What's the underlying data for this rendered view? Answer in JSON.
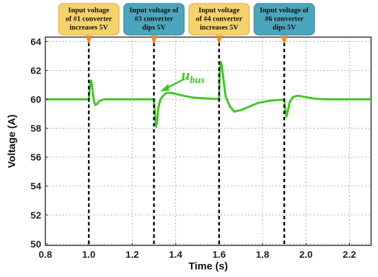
{
  "chart_data": {
    "type": "line",
    "xlabel": "Time (s)",
    "ylabel": "Voltage (A)",
    "xlim": [
      0.8,
      2.3
    ],
    "ylim": [
      49.9,
      64.3
    ],
    "xticks": [
      "0.8",
      "1.0",
      "1.2",
      "1.4",
      "1.6",
      "1.8",
      "2.0",
      "2.2"
    ],
    "xtick_values": [
      0.8,
      1.0,
      1.2,
      1.4,
      1.6,
      1.8,
      2.0,
      2.2
    ],
    "yticks": [
      "50",
      "52",
      "54",
      "56",
      "58",
      "60",
      "62",
      "64"
    ],
    "ytick_values": [
      50,
      52,
      54,
      56,
      58,
      60,
      62,
      64
    ],
    "grid": true,
    "series": [
      {
        "label_main": "u",
        "label_sub": "bus",
        "color": "#3cc81e",
        "points": [
          [
            0.8,
            60.0
          ],
          [
            0.99,
            60.0
          ],
          [
            1.0,
            60.0
          ],
          [
            1.005,
            60.8
          ],
          [
            1.01,
            61.3
          ],
          [
            1.015,
            61.0
          ],
          [
            1.02,
            60.3
          ],
          [
            1.025,
            59.8
          ],
          [
            1.03,
            59.6
          ],
          [
            1.04,
            59.7
          ],
          [
            1.05,
            59.9
          ],
          [
            1.07,
            60.0
          ],
          [
            1.3,
            60.0
          ],
          [
            1.302,
            59.5
          ],
          [
            1.31,
            58.1
          ],
          [
            1.315,
            58.6
          ],
          [
            1.32,
            59.4
          ],
          [
            1.33,
            60.0
          ],
          [
            1.345,
            60.3
          ],
          [
            1.36,
            60.45
          ],
          [
            1.38,
            60.45
          ],
          [
            1.42,
            60.3
          ],
          [
            1.48,
            60.12
          ],
          [
            1.55,
            60.05
          ],
          [
            1.6,
            60.02
          ],
          [
            1.602,
            61.5
          ],
          [
            1.607,
            62.6
          ],
          [
            1.612,
            62.4
          ],
          [
            1.62,
            61.4
          ],
          [
            1.63,
            60.2
          ],
          [
            1.65,
            59.5
          ],
          [
            1.67,
            59.15
          ],
          [
            1.7,
            59.25
          ],
          [
            1.74,
            59.5
          ],
          [
            1.78,
            59.75
          ],
          [
            1.84,
            59.92
          ],
          [
            1.9,
            59.98
          ],
          [
            1.902,
            59.6
          ],
          [
            1.91,
            58.8
          ],
          [
            1.915,
            59.1
          ],
          [
            1.925,
            59.8
          ],
          [
            1.94,
            60.15
          ],
          [
            1.96,
            60.25
          ],
          [
            1.99,
            60.18
          ],
          [
            2.04,
            60.04
          ],
          [
            2.1,
            60.0
          ],
          [
            2.3,
            60.0
          ]
        ]
      }
    ],
    "events": [
      {
        "x": 1.0,
        "text": [
          "Input voltage",
          "of #1 converter",
          "increases 5V"
        ],
        "fill": "#f7d26a",
        "stroke": "#d4a93a"
      },
      {
        "x": 1.3,
        "text": [
          "Input voltage of",
          "#3 converter",
          "dips 5V"
        ],
        "fill": "#4aa6bd",
        "stroke": "#2f7f94"
      },
      {
        "x": 1.6,
        "text": [
          "Input voltage",
          "of #4 converter",
          "increases 5V"
        ],
        "fill": "#f7d26a",
        "stroke": "#d4a93a"
      },
      {
        "x": 1.9,
        "text": [
          "Input voltage of",
          "#6 converter",
          "dips 5V"
        ],
        "fill": "#4aa6bd",
        "stroke": "#2f7f94"
      }
    ],
    "marker_color": "#f08a1c"
  }
}
